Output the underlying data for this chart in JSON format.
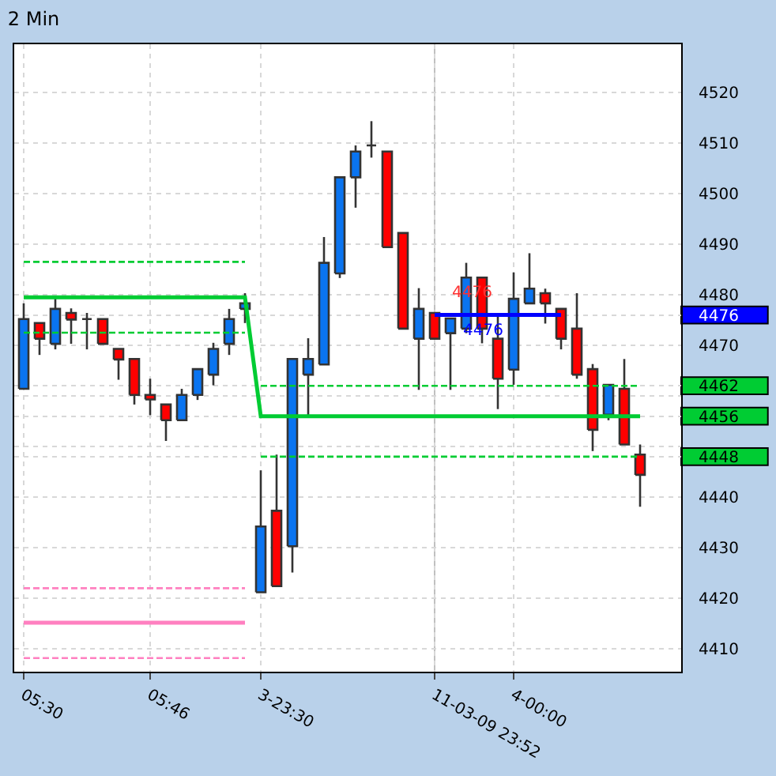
{
  "chart_data": {
    "type": "candlestick",
    "title": "2 Min",
    "categories": [
      "05:30",
      null,
      null,
      null,
      null,
      null,
      null,
      null,
      "05:46",
      null,
      null,
      null,
      null,
      null,
      null,
      "3-23:30",
      null,
      null,
      null,
      null,
      null,
      null,
      null,
      null,
      null,
      null,
      "11-03-09 23:52",
      null,
      null,
      null,
      null,
      "4-00:00",
      null,
      null,
      null,
      null,
      null,
      null,
      null,
      null
    ],
    "ohlc": [
      [
        4461.4,
        4478.3,
        4461.4,
        4475.2
      ],
      [
        4474.4,
        4474.4,
        4468.1,
        4471.3
      ],
      [
        4470.3,
        4479.3,
        4469.2,
        4477.2
      ],
      [
        4476.4,
        4477.3,
        4470.3,
        4475.1
      ],
      [
        4475.2,
        4476.4,
        4469.2,
        4475.2
      ],
      [
        4475.2,
        4475.2,
        4470.3,
        4470.3
      ],
      [
        4469.3,
        4469.3,
        4463.2,
        4467.2
      ],
      [
        4467.3,
        4467.3,
        4458.3,
        4460.2
      ],
      [
        4460.2,
        4463.4,
        4456.2,
        4459.3
      ],
      [
        4458.3,
        4458.3,
        4451.1,
        4455.2
      ],
      [
        4455.2,
        4461.4,
        4455.2,
        4460.2
      ],
      [
        4460.2,
        4465.3,
        4459.2,
        4465.3
      ],
      [
        4464.2,
        4470.5,
        4462.1,
        4469.3
      ],
      [
        4470.3,
        4477.2,
        4468.1,
        4475.2
      ],
      [
        4477.2,
        4480.3,
        4474.4,
        4478.3
      ],
      [
        4421.2,
        4445.3,
        4421.2,
        4434.2
      ],
      [
        4437.3,
        4448.4,
        4422.4,
        4422.4
      ],
      [
        4430.3,
        4467.3,
        4425.1,
        4467.3
      ],
      [
        4464.2,
        4471.4,
        4456.2,
        4467.3
      ],
      [
        4466.2,
        4491.4,
        4466.2,
        4486.3
      ],
      [
        4484.2,
        4503.2,
        4483.3,
        4503.2
      ],
      [
        4503.2,
        4509.5,
        4497.2,
        4508.3
      ],
      [
        4509.5,
        4514.3,
        4507.1,
        4509.5
      ],
      [
        4508.3,
        4508.3,
        4489.4,
        4489.4
      ],
      [
        4492.2,
        4492.2,
        4473.3,
        4473.3
      ],
      [
        4471.3,
        4481.3,
        4461.2,
        4477.2
      ],
      [
        4476.4,
        4476.4,
        4471.3,
        4471.3
      ],
      [
        4472.4,
        4475.3,
        4461.2,
        4475.3
      ],
      [
        4473.3,
        4486.3,
        4472.4,
        4483.4
      ],
      [
        4483.4,
        4483.4,
        4470.4,
        4473.3
      ],
      [
        4471.3,
        4476.4,
        4457.4,
        4463.4
      ],
      [
        4465.2,
        4484.4,
        4462.2,
        4479.2
      ],
      [
        4478.3,
        4488.2,
        4478.3,
        4481.2
      ],
      [
        4480.3,
        4481.2,
        4474.3,
        4478.3
      ],
      [
        4477.2,
        4477.2,
        4469.2,
        4471.3
      ],
      [
        4473.3,
        4480.3,
        4463.4,
        4464.2
      ],
      [
        4465.3,
        4466.3,
        4449.1,
        4453.3
      ],
      [
        4456.3,
        4462.2,
        4455.2,
        4462.2
      ],
      [
        4461.4,
        4467.3,
        4450.4,
        4450.4
      ],
      [
        4448.4,
        4450.4,
        4438.1,
        4444.4
      ]
    ],
    "colors": [
      "#0a74f0",
      "#ff0000",
      "#0a74f0",
      "#ff0000",
      "#333333",
      "#ff0000",
      "#ff0000",
      "#ff0000",
      "#ff0000",
      "#ff0000",
      "#0a74f0",
      "#0a74f0",
      "#0a74f0",
      "#0a74f0",
      "#0a74f0",
      "#0a74f0",
      "#ff0000",
      "#0a74f0",
      "#0a74f0",
      "#0a74f0",
      "#0a74f0",
      "#0a74f0",
      "#333333",
      "#ff0000",
      "#ff0000",
      "#0a74f0",
      "#ff0000",
      "#0a74f0",
      "#0a74f0",
      "#ff0000",
      "#ff0000",
      "#0a74f0",
      "#0a74f0",
      "#ff0000",
      "#ff0000",
      "#ff0000",
      "#ff0000",
      "#0a74f0",
      "#ff0000",
      "#ff0000"
    ],
    "series": [
      {
        "type": "line",
        "color": "#00cc33",
        "line_style": "solid",
        "values": [
          4479.5,
          4479.5,
          4479.5,
          4479.5,
          4479.5,
          4479.5,
          4479.5,
          4479.5,
          4479.5,
          4479.5,
          4479.5,
          4479.5,
          4479.5,
          4479.5,
          4479.5,
          4456,
          4456,
          4456,
          4456,
          4456,
          4456,
          4456,
          4456,
          4456,
          4456,
          4456,
          4456,
          4456,
          4456,
          4456,
          4456,
          4456,
          4456,
          4456,
          4456,
          4456,
          4456,
          4456,
          4456,
          4456
        ]
      },
      {
        "type": "line",
        "color": "#00cc33",
        "line_style": "dashed",
        "values": [
          4486.5,
          4486.5,
          4486.5,
          4486.5,
          4486.5,
          4486.5,
          4486.5,
          4486.5,
          4486.5,
          4486.5,
          4486.5,
          4486.5,
          4486.5,
          4486.5,
          4486.5,
          null,
          null,
          null,
          null,
          null,
          null,
          null,
          null,
          null,
          null,
          null,
          null,
          null,
          null,
          null,
          null,
          null,
          null,
          null,
          null,
          null,
          null,
          null,
          null,
          null
        ]
      },
      {
        "type": "line",
        "color": "#00cc33",
        "line_style": "dashed",
        "values": [
          4472.5,
          4472.5,
          4472.5,
          4472.5,
          4472.5,
          4472.5,
          4472.5,
          4472.5,
          4472.5,
          4472.5,
          4472.5,
          4472.5,
          4472.5,
          4472.5,
          4472.5,
          null,
          null,
          null,
          null,
          null,
          null,
          null,
          null,
          null,
          null,
          null,
          null,
          null,
          null,
          null,
          null,
          null,
          null,
          null,
          null,
          null,
          null,
          null,
          null,
          null
        ]
      },
      {
        "type": "line",
        "color": "#00cc33",
        "line_style": "dashed",
        "values": [
          null,
          null,
          null,
          null,
          null,
          null,
          null,
          null,
          null,
          null,
          null,
          null,
          null,
          null,
          null,
          4462,
          4462,
          4462,
          4462,
          4462,
          4462,
          4462,
          4462,
          4462,
          4462,
          4462,
          4462,
          4462,
          4462,
          4462,
          4462,
          4462,
          4462,
          4462,
          4462,
          4462,
          4462,
          4462,
          4462,
          4462
        ]
      },
      {
        "type": "line",
        "color": "#00cc33",
        "line_style": "dashed",
        "values": [
          null,
          null,
          null,
          null,
          null,
          null,
          null,
          null,
          null,
          null,
          null,
          null,
          null,
          null,
          null,
          4448,
          4448,
          4448,
          4448,
          4448,
          4448,
          4448,
          4448,
          4448,
          4448,
          4448,
          4448,
          4448,
          4448,
          4448,
          4448,
          4448,
          4448,
          4448,
          4448,
          4448,
          4448,
          4448,
          4448,
          4448
        ]
      },
      {
        "type": "line",
        "color": "#ff80c0",
        "line_style": "dashed",
        "values": [
          4422,
          4422,
          4422,
          4422,
          4422,
          4422,
          4422,
          4422,
          4422,
          4422,
          4422,
          4422,
          4422,
          4422,
          4422,
          null,
          null,
          null,
          null,
          null,
          null,
          null,
          null,
          null,
          null,
          null,
          null,
          null,
          null,
          null,
          null,
          null,
          null,
          null,
          null,
          null,
          null,
          null,
          null,
          null
        ]
      },
      {
        "type": "line",
        "color": "#ff80c0",
        "line_style": "solid",
        "values": [
          4415.2,
          4415.2,
          4415.2,
          4415.2,
          4415.2,
          4415.2,
          4415.2,
          4415.2,
          4415.2,
          4415.2,
          4415.2,
          4415.2,
          4415.2,
          4415.2,
          4415.2,
          null,
          null,
          null,
          null,
          null,
          null,
          null,
          null,
          null,
          null,
          null,
          null,
          null,
          null,
          null,
          null,
          null,
          null,
          null,
          null,
          null,
          null,
          null,
          null,
          null
        ]
      },
      {
        "type": "line",
        "color": "#ff80c0",
        "line_style": "dashed",
        "values": [
          4408.2,
          4408.2,
          4408.2,
          4408.2,
          4408.2,
          4408.2,
          4408.2,
          4408.2,
          4408.2,
          4408.2,
          4408.2,
          4408.2,
          4408.2,
          4408.2,
          4408.2,
          null,
          null,
          null,
          null,
          null,
          null,
          null,
          null,
          null,
          null,
          null,
          null,
          null,
          null,
          null,
          null,
          null,
          null,
          null,
          null,
          null,
          null,
          null,
          null,
          null
        ]
      },
      {
        "type": "line",
        "color": "#0000ff",
        "line_style": "solid",
        "values": [
          null,
          null,
          null,
          null,
          null,
          null,
          null,
          null,
          null,
          null,
          null,
          null,
          null,
          null,
          null,
          null,
          null,
          null,
          null,
          null,
          null,
          null,
          null,
          null,
          null,
          null,
          4476,
          4476,
          4476,
          4476,
          4476,
          4476,
          4476,
          4476,
          4476,
          null,
          null,
          null,
          null,
          null
        ],
        "value_labels": [
          null,
          null,
          null,
          null,
          null,
          null,
          null,
          null,
          null,
          null,
          null,
          null,
          null,
          null,
          null,
          null,
          null,
          null,
          null,
          null,
          null,
          null,
          null,
          null,
          null,
          null,
          null,
          null,
          null,
          "4476",
          null,
          null,
          null,
          null,
          null,
          null,
          null,
          null,
          null,
          null
        ]
      }
    ],
    "annotations": [
      "4476"
    ],
    "ref_lines": [
      {
        "axis": "x",
        "value": "11-03-09 23:52",
        "color": "#c0c0c0"
      }
    ],
    "ylim": [
      4405.5,
      4529.5
    ],
    "yticks": [
      4410,
      4420,
      4430,
      4440,
      {
        "value": 4450,
        "label": null
      },
      {
        "value": 4460,
        "label": null
      },
      4470,
      4480,
      4490,
      4500,
      4510,
      4520,
      {
        "value": 4476,
        "label": "4476"
      },
      {
        "value": 4462,
        "label": "4462"
      },
      {
        "value": 4456,
        "label": "4456"
      },
      {
        "value": 4448,
        "label": "4448"
      }
    ],
    "grid": true
  }
}
